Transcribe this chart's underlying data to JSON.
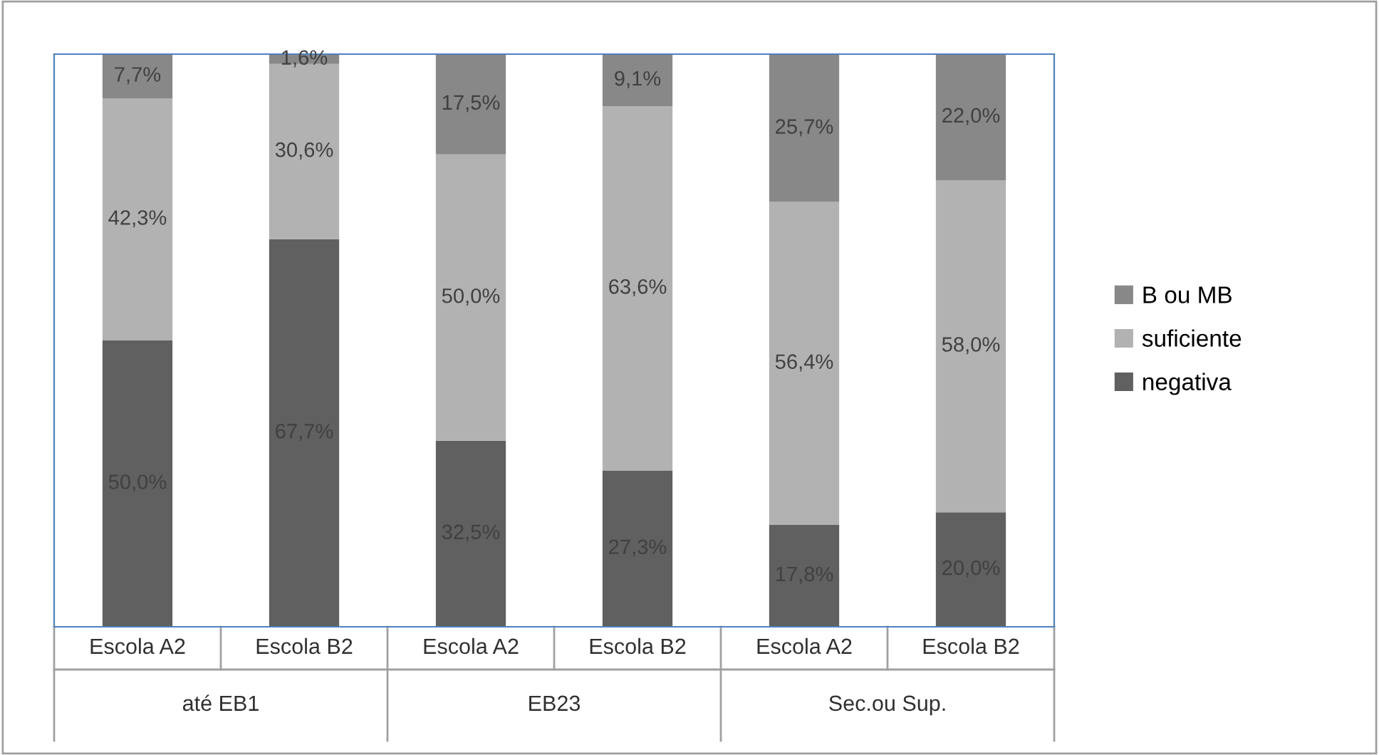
{
  "chart_data": {
    "type": "bar",
    "stacked": true,
    "categories": [
      "Escola A2",
      "Escola B2",
      "Escola A2",
      "Escola B2",
      "Escola A2",
      "Escola B2"
    ],
    "annotations": [
      "até EB1",
      "EB23",
      "Sec.ou Sup."
    ],
    "ylim": [
      0,
      100
    ],
    "tick_labels": "x",
    "legend": "right",
    "series": [
      {
        "name": "negativa",
        "color": "#606060",
        "values": [
          50.0,
          67.7,
          32.5,
          27.3,
          17.8,
          20.0
        ],
        "value_labels": [
          "50,0%",
          "67,7%",
          "32,5%",
          "27,3%",
          "17,8%",
          "20,0%"
        ]
      },
      {
        "name": "suficiente",
        "color": "#b2b2b2",
        "values": [
          42.3,
          30.6,
          50.0,
          63.6,
          56.4,
          58.0
        ],
        "value_labels": [
          "42,3%",
          "30,6%",
          "50,0%",
          "63,6%",
          "56,4%",
          "58,0%"
        ]
      },
      {
        "name": "B ou MB",
        "color": "#888888",
        "values": [
          7.7,
          1.6,
          17.5,
          9.1,
          25.7,
          22.0
        ],
        "value_labels": [
          "7,7%",
          "1,6%",
          "17,5%",
          "9,1%",
          "25,7%",
          "22,0%"
        ]
      }
    ]
  }
}
